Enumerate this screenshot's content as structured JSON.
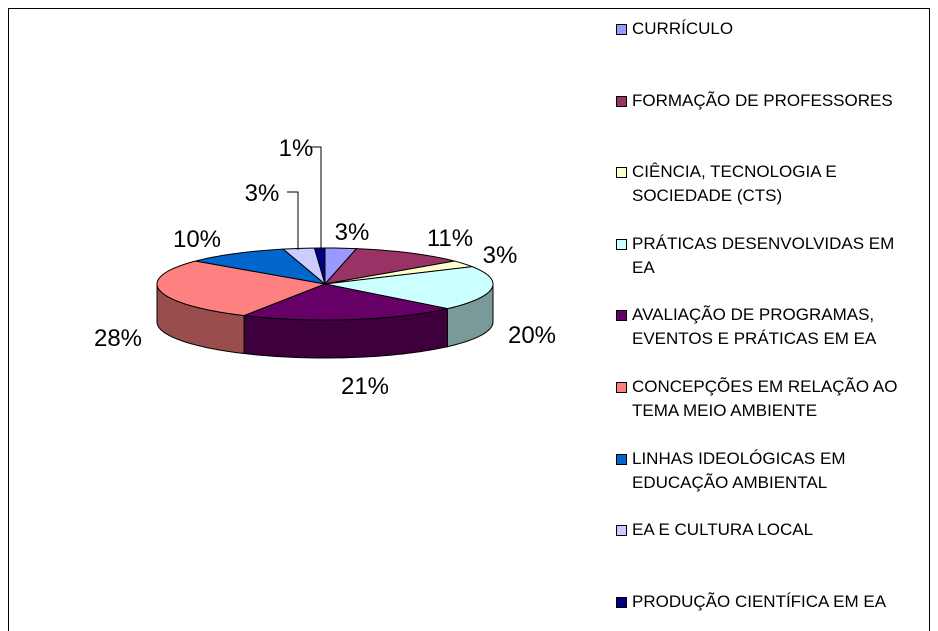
{
  "chart_data": {
    "type": "pie",
    "categories": [
      "CURRÍCULO",
      "FORMAÇÃO DE PROFESSORES",
      "CIÊNCIA, TECNOLOGIA E SOCIEDADE (CTS)",
      "PRÁTICAS DESENVOLVIDAS EM EA",
      "AVALIAÇÃO DE PROGRAMAS, EVENTOS E PRÁTICAS EM EA",
      "CONCEPÇÕES EM RELAÇÃO AO TEMA MEIO AMBIENTE",
      "LINHAS IDEOLÓGICAS EM EDUCAÇÃO AMBIENTAL",
      "EA E CULTURA LOCAL",
      "PRODUÇÃO CIENTÍFICA EM EA"
    ],
    "values": [
      3,
      11,
      3,
      20,
      21,
      28,
      10,
      3,
      1
    ],
    "value_labels": [
      "3%",
      "11%",
      "3%",
      "20%",
      "21%",
      "28%",
      "10%",
      "3%",
      "1%"
    ],
    "colors": [
      "#9999ff",
      "#993366",
      "#ffffcc",
      "#ccffff",
      "#660066",
      "#ff8080",
      "#0066cc",
      "#ccccff",
      "#000080"
    ],
    "legend": "right"
  }
}
